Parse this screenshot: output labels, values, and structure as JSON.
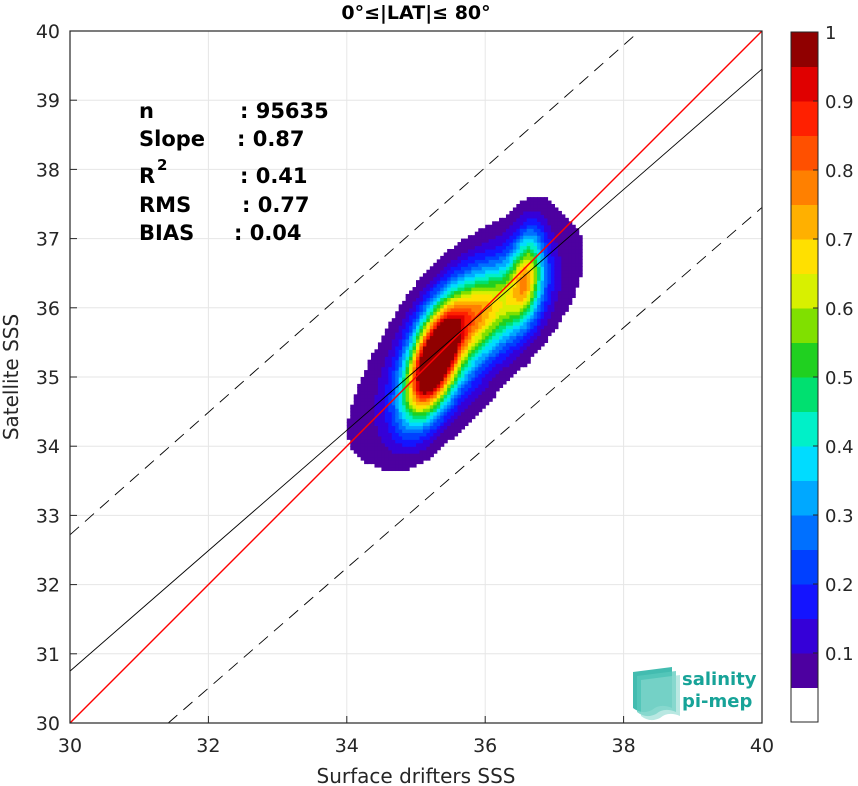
{
  "chart_data": {
    "type": "heatmap",
    "title": "0°≤|LAT|≤ 80°",
    "xlabel": "Surface drifters SSS",
    "ylabel": "Satellite SSS",
    "xlim": [
      30,
      40
    ],
    "ylim": [
      30,
      40
    ],
    "x_ticks": [
      "30",
      "32",
      "34",
      "36",
      "38",
      "40"
    ],
    "y_ticks": [
      "30",
      "31",
      "32",
      "33",
      "34",
      "35",
      "36",
      "37",
      "38",
      "39",
      "40"
    ],
    "grid": true,
    "stats": [
      {
        "label": "n",
        "value": ": 95635"
      },
      {
        "label": "Slope",
        "value": ": 0.87"
      },
      {
        "label": "R",
        "sup": "2",
        "value": ": 0.41"
      },
      {
        "label": "RMS",
        "value": ": 0.77"
      },
      {
        "label": "BIAS",
        "value": ": 0.04"
      }
    ],
    "lines": [
      {
        "name": "identity",
        "color": "#ff0000",
        "style": "solid",
        "points": [
          [
            30,
            30
          ],
          [
            40,
            40
          ]
        ]
      },
      {
        "name": "regression",
        "color": "#000000",
        "style": "solid",
        "points": [
          [
            30,
            30.75
          ],
          [
            40,
            39.45
          ]
        ]
      },
      {
        "name": "upper-bound",
        "color": "#000000",
        "style": "dashed",
        "points": [
          [
            30,
            32.72
          ],
          [
            38.23,
            40
          ]
        ]
      },
      {
        "name": "lower-bound",
        "color": "#000000",
        "style": "dashed",
        "points": [
          [
            31.42,
            30
          ],
          [
            40,
            37.45
          ]
        ]
      }
    ],
    "density_peaks": [
      {
        "x": 35.25,
        "y": 35.25,
        "level": 0.95
      },
      {
        "x": 36.0,
        "y": 36.0,
        "level": 0.62
      },
      {
        "x": 36.6,
        "y": 36.5,
        "level": 0.6
      }
    ],
    "colorbar": {
      "ticks": [
        "0.1",
        "0.2",
        "0.3",
        "0.4",
        "0.5",
        "0.6",
        "0.7",
        "0.8",
        "0.9",
        "1"
      ],
      "levels": [
        0,
        0.05,
        0.1,
        0.15,
        0.2,
        0.25,
        0.3,
        0.35,
        0.4,
        0.45,
        0.5,
        0.55,
        0.6,
        0.65,
        0.7,
        0.75,
        0.8,
        0.85,
        0.9,
        0.95,
        1
      ],
      "colors": [
        "#ffffff",
        "#4d00a0",
        "#3500d8",
        "#1414ff",
        "#0040ff",
        "#0070ff",
        "#00a8ff",
        "#00dcff",
        "#00f0c8",
        "#00e070",
        "#20d020",
        "#80e000",
        "#d8f000",
        "#ffe000",
        "#ffb000",
        "#ff8000",
        "#ff5000",
        "#ff2000",
        "#e00000",
        "#900000"
      ]
    }
  },
  "logo": {
    "line1": "salinity",
    "line2": "pi-mep"
  }
}
